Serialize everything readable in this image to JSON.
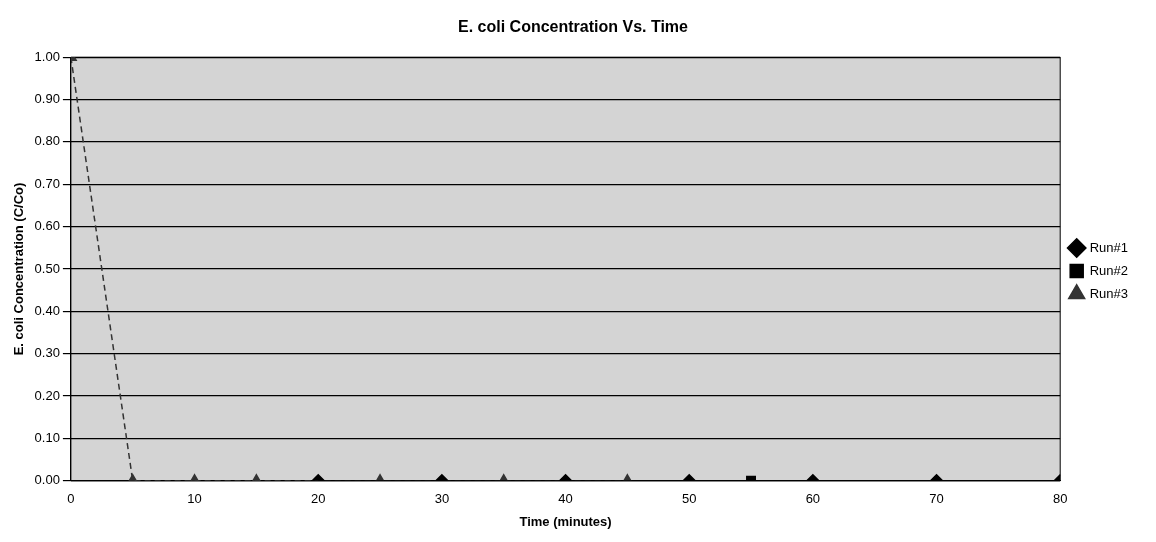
{
  "chart_data": {
    "type": "line",
    "title": "E. coli Concentration Vs. Time",
    "xlabel": "Time (minutes)",
    "ylabel": "E. coli Concentration (C/Co)",
    "xlim": [
      0,
      80
    ],
    "xticks": [
      0,
      10,
      20,
      30,
      40,
      50,
      60,
      70,
      80
    ],
    "ylim": [
      0,
      1
    ],
    "yticks": [
      {
        "value": 0,
        "label": "0.00"
      },
      {
        "value": 0.1,
        "label": "0.10"
      },
      {
        "value": 0.2,
        "label": "0.20"
      },
      {
        "value": 0.3,
        "label": "0.30"
      },
      {
        "value": 0.4,
        "label": "0.40"
      },
      {
        "value": 0.5,
        "label": "0.50"
      },
      {
        "value": 0.6,
        "label": "0.60"
      },
      {
        "value": 0.7,
        "label": "0.70"
      },
      {
        "value": 0.8,
        "label": "0.80"
      },
      {
        "value": 0.9,
        "label": "0.90"
      },
      {
        "value": 1,
        "label": "1.00"
      }
    ],
    "grid": "y",
    "legend": "right",
    "series": [
      {
        "name": "Run#1",
        "color": "#000000",
        "marker": "diamond",
        "line_style": "solid",
        "x": [
          20,
          30,
          40,
          50,
          60,
          70,
          80
        ],
        "values": [
          0,
          0,
          0,
          0,
          0,
          0,
          0
        ]
      },
      {
        "name": "Run#2",
        "color": "#000000",
        "marker": "square",
        "line_style": "solid",
        "x": [
          55
        ],
        "values": [
          0
        ]
      },
      {
        "name": "Run#3",
        "color": "#333333",
        "marker": "triangle",
        "line_style": "dashed",
        "x": [
          0,
          5,
          10,
          15,
          25,
          35,
          45
        ],
        "values": [
          1,
          0,
          0,
          0,
          0,
          0,
          0
        ]
      }
    ]
  }
}
